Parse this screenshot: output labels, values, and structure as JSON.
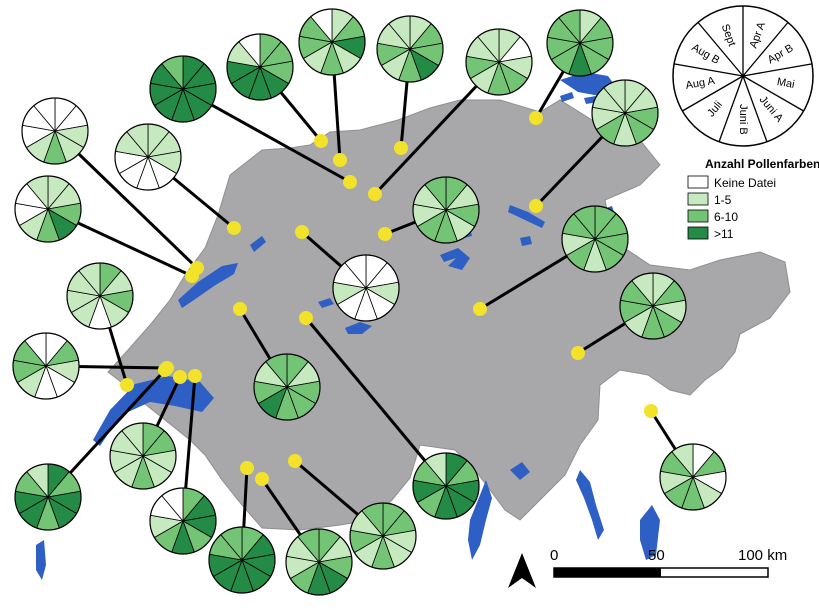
{
  "legend": {
    "title": "Anzahl Pollenfarben",
    "items": [
      {
        "label": "Keine Datei",
        "color": "#ffffff"
      },
      {
        "label": "1-5",
        "color": "#c7e9c0"
      },
      {
        "label": "6-10",
        "color": "#74c476"
      },
      {
        "label": ">11",
        "color": "#238b45"
      }
    ]
  },
  "months_key": {
    "labels": [
      "Apr A",
      "Apr B",
      "Mai",
      "Juni A",
      "Juni B",
      "Juli",
      "Aug A",
      "Aug B",
      "Sept"
    ]
  },
  "scale_bar": {
    "ticks": [
      "0",
      "50",
      "100 km"
    ]
  },
  "colors": {
    "land": "#a8a8aa",
    "water": "#2e5fc4",
    "site": "#f2e22a",
    "c0": "#ffffff",
    "c1": "#c7e9c0",
    "c2": "#74c476",
    "c3": "#238b45"
  },
  "sites": [
    {
      "id": "s01",
      "cls": [
        0,
        0,
        1,
        1,
        2,
        1,
        0,
        0,
        0
      ]
    },
    {
      "id": "s02",
      "cls": [
        1,
        1,
        2,
        3,
        2,
        1,
        0,
        0,
        1
      ]
    },
    {
      "id": "s03",
      "cls": [
        1,
        1,
        1,
        0,
        0,
        0,
        0,
        1,
        1
      ]
    },
    {
      "id": "s04",
      "cls": [
        2,
        1,
        2,
        1,
        0,
        1,
        1,
        1,
        1
      ]
    },
    {
      "id": "s05",
      "cls": [
        0,
        2,
        1,
        0,
        0,
        1,
        2,
        2,
        0
      ]
    },
    {
      "id": "s06",
      "cls": [
        2,
        2,
        1,
        1,
        2,
        1,
        1,
        1,
        1
      ]
    },
    {
      "id": "s07",
      "cls": [
        3,
        3,
        3,
        3,
        3,
        3,
        3,
        3,
        2
      ]
    },
    {
      "id": "s08",
      "cls": [
        3,
        2,
        3,
        3,
        2,
        3,
        3,
        2,
        1
      ]
    },
    {
      "id": "s09",
      "cls": [
        2,
        3,
        3,
        2,
        3,
        2,
        1,
        0,
        0
      ]
    },
    {
      "id": "s10",
      "cls": [
        2,
        3,
        3,
        3,
        3,
        3,
        3,
        2,
        2
      ]
    },
    {
      "id": "s11",
      "cls": [
        2,
        1,
        2,
        3,
        3,
        2,
        1,
        1,
        2
      ]
    },
    {
      "id": "s12",
      "cls": [
        2,
        2,
        1,
        1,
        2,
        1,
        2,
        1,
        2
      ]
    },
    {
      "id": "s13",
      "cls": [
        2,
        1,
        2,
        2,
        2,
        3,
        2,
        1,
        2
      ]
    },
    {
      "id": "s14",
      "cls": [
        1,
        2,
        3,
        1,
        2,
        1,
        2,
        2,
        0
      ]
    },
    {
      "id": "s15",
      "cls": [
        2,
        2,
        2,
        3,
        3,
        3,
        3,
        1,
        0
      ]
    },
    {
      "id": "s16",
      "cls": [
        1,
        2,
        2,
        3,
        2,
        1,
        2,
        1,
        1
      ]
    },
    {
      "id": "s17",
      "cls": [
        1,
        0,
        1,
        2,
        2,
        1,
        2,
        1,
        1
      ]
    },
    {
      "id": "s18",
      "cls": [
        1,
        2,
        2,
        2,
        3,
        2,
        2,
        2,
        2
      ]
    },
    {
      "id": "s19",
      "cls": [
        3,
        2,
        3,
        3,
        3,
        2,
        3,
        2,
        1
      ]
    },
    {
      "id": "s20",
      "cls": [
        2,
        2,
        2,
        2,
        1,
        2,
        1,
        2,
        2
      ]
    },
    {
      "id": "s21",
      "cls": [
        1,
        1,
        2,
        2,
        1,
        2,
        1,
        1,
        1
      ]
    },
    {
      "id": "s22",
      "cls": [
        0,
        0,
        1,
        0,
        0,
        0,
        1,
        0,
        0
      ]
    },
    {
      "id": "s23",
      "cls": [
        2,
        1,
        2,
        1,
        2,
        2,
        1,
        1,
        2
      ]
    },
    {
      "id": "s24",
      "cls": [
        1,
        2,
        1,
        2,
        2,
        1,
        2,
        2,
        1
      ]
    },
    {
      "id": "s25",
      "cls": [
        0,
        2,
        0,
        1,
        2,
        2,
        1,
        2,
        1
      ]
    }
  ]
}
